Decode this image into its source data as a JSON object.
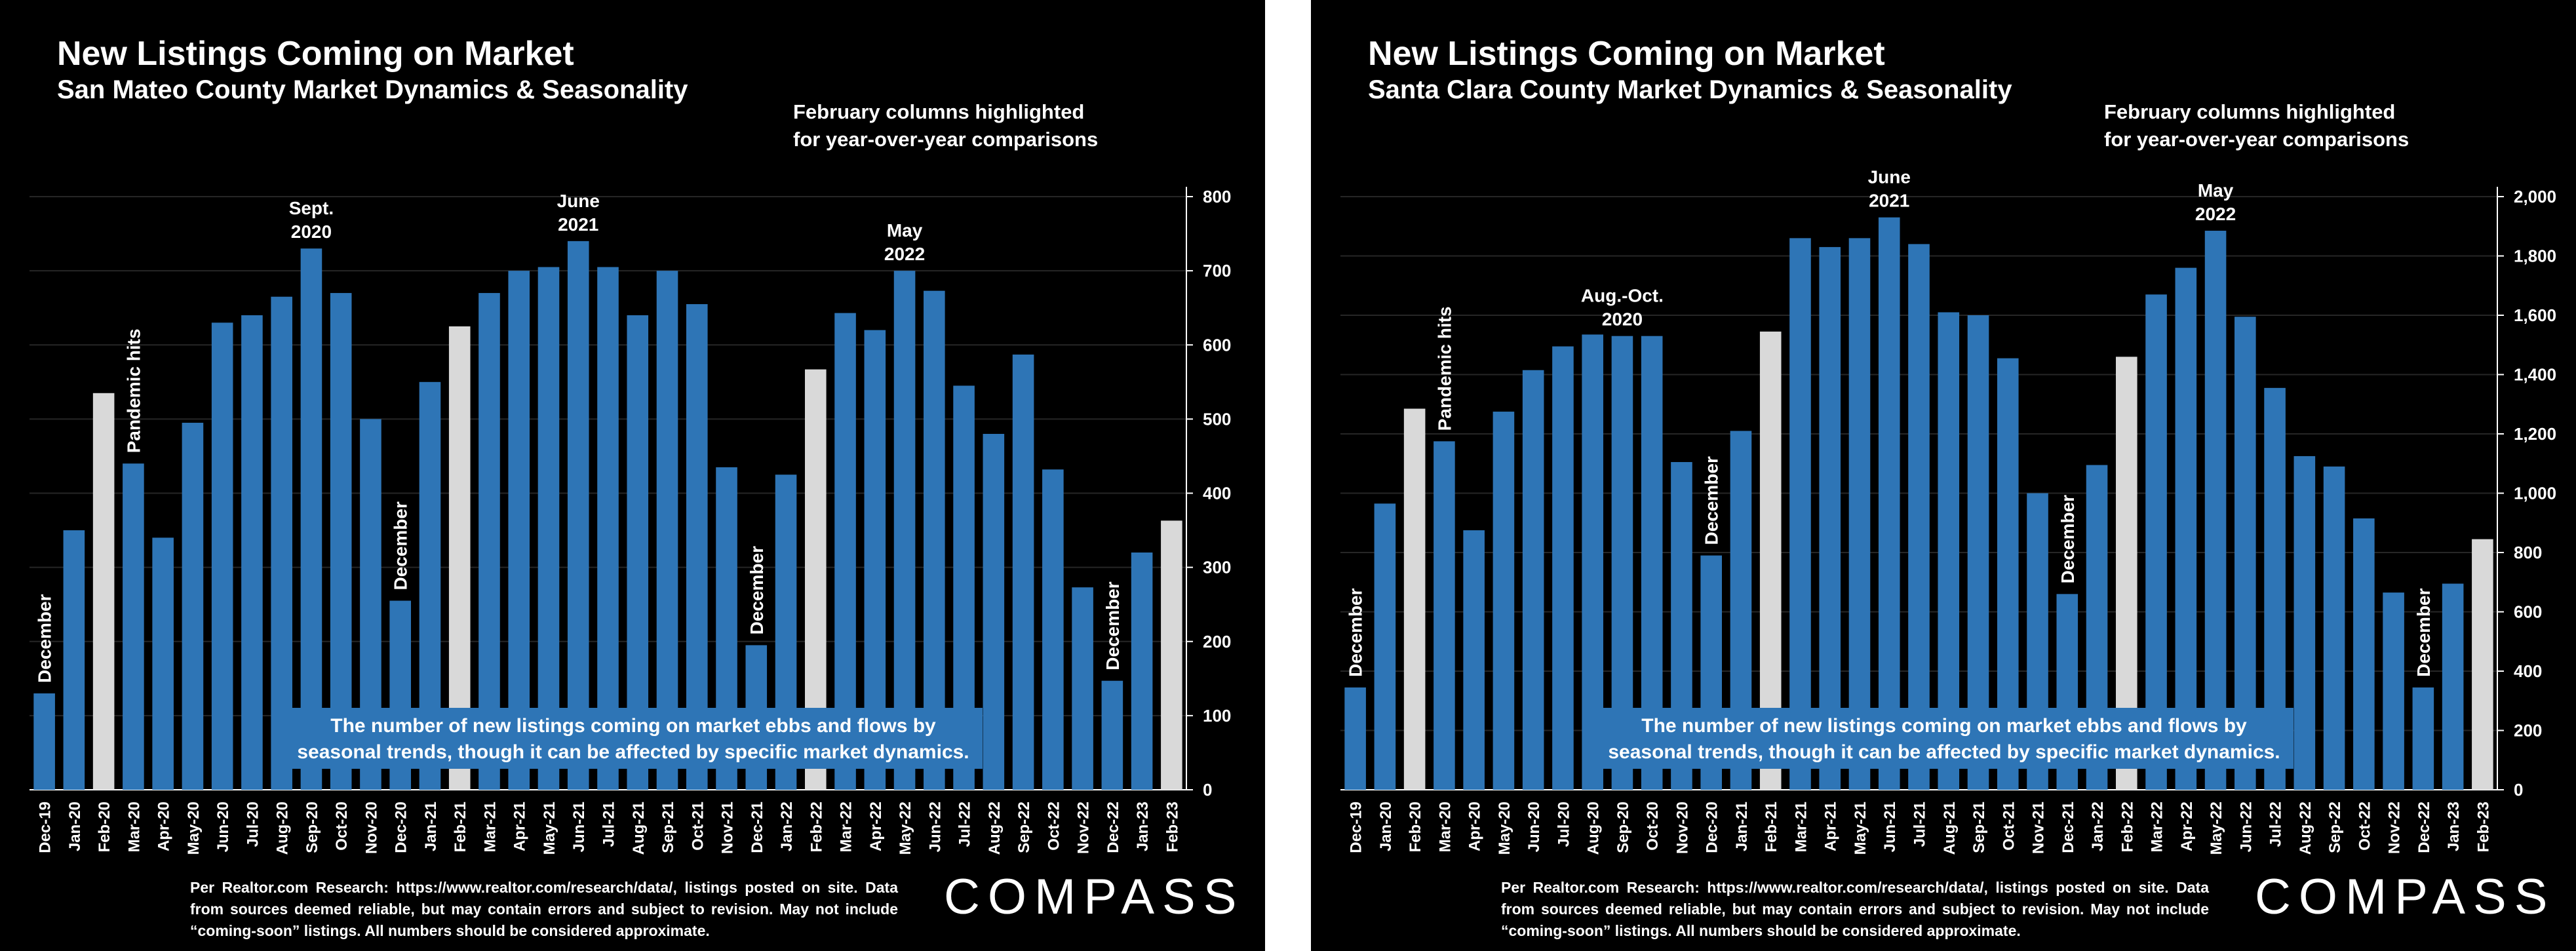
{
  "colors": {
    "background": "#000000",
    "bar": "#2e75b6",
    "highlight": "#d9d9d9",
    "text": "#ffffff",
    "callout_bg": "#2e75b6",
    "gridline": "#262626"
  },
  "panels": [
    {
      "title": "New Listings Coming on Market",
      "subtitle": "San Mateo County Market Dynamics & Seasonality",
      "note": "February columns highlighted\nfor year-over-year comparisons",
      "callout": "The number of new listings coming on market ebbs and flows by\nseasonal trends, though it can be affected by specific market dynamics.",
      "footer": "Per Realtor.com Research: https://www.realtor.com/research/data/, listings posted on site. Data from sources deemed reliable, but may contain errors and subject to revision. May not include “coming-soon” listings. All numbers should be considered approximate.",
      "logo": "COMPASS"
    },
    {
      "title": "New Listings Coming on Market",
      "subtitle": "Santa Clara County Market Dynamics & Seasonality",
      "note": "February columns highlighted\nfor year-over-year comparisons",
      "callout": "The number of new listings coming on market ebbs and flows by\nseasonal trends, though it can be affected by specific market dynamics.",
      "footer": "Per Realtor.com Research: https://www.realtor.com/research/data/, listings posted on site. Data from sources deemed reliable, but may contain errors and subject to revision. May not include “coming-soon” listings. All numbers should be considered approximate.",
      "logo": "COMPASS"
    }
  ],
  "chart_data": [
    {
      "type": "bar",
      "title": "New Listings Coming on Market",
      "subtitle": "San Mateo County Market Dynamics & Seasonality",
      "categories": [
        "Dec-19",
        "Jan-20",
        "Feb-20",
        "Mar-20",
        "Apr-20",
        "May-20",
        "Jun-20",
        "Jul-20",
        "Aug-20",
        "Sep-20",
        "Oct-20",
        "Nov-20",
        "Dec-20",
        "Jan-21",
        "Feb-21",
        "Mar-21",
        "Apr-21",
        "May-21",
        "Jun-21",
        "Jul-21",
        "Aug-21",
        "Sep-21",
        "Oct-21",
        "Nov-21",
        "Dec-21",
        "Jan-22",
        "Feb-22",
        "Mar-22",
        "Apr-22",
        "May-22",
        "Jun-22",
        "Jul-22",
        "Aug-22",
        "Sep-22",
        "Oct-22",
        "Nov-22",
        "Dec-22",
        "Jan-23",
        "Feb-23"
      ],
      "values": [
        130,
        350,
        535,
        440,
        340,
        495,
        630,
        640,
        665,
        730,
        670,
        500,
        255,
        550,
        625,
        670,
        700,
        705,
        740,
        705,
        640,
        700,
        655,
        435,
        195,
        425,
        567,
        643,
        620,
        700,
        673,
        545,
        480,
        587,
        432,
        273,
        147,
        320,
        363
      ],
      "highlight_categories": [
        "Feb-20",
        "Feb-21",
        "Feb-22",
        "Feb-23"
      ],
      "ylim": [
        0,
        800
      ],
      "yticks": [
        "0",
        "100",
        "200",
        "300",
        "400",
        "500",
        "600",
        "700",
        "800"
      ],
      "y_axis_side": "right",
      "grid": true,
      "annotations": [
        {
          "text": "December",
          "category": "Dec-19",
          "orientation": "vertical"
        },
        {
          "text": "Pandemic hits",
          "category": "Mar-20",
          "orientation": "vertical"
        },
        {
          "text": "December",
          "category": "Dec-20",
          "orientation": "vertical"
        },
        {
          "text": "December",
          "category": "Dec-21",
          "orientation": "vertical"
        },
        {
          "text": "December",
          "category": "Dec-22",
          "orientation": "vertical"
        },
        {
          "text": "Sept.\n2020",
          "category": "Sep-20",
          "orientation": "horizontal"
        },
        {
          "text": "June\n2021",
          "category": "Jun-21",
          "orientation": "horizontal"
        },
        {
          "text": "May\n2022",
          "category": "May-22",
          "orientation": "horizontal"
        }
      ]
    },
    {
      "type": "bar",
      "title": "New Listings Coming on Market",
      "subtitle": "Santa Clara County Market Dynamics & Seasonality",
      "categories": [
        "Dec-19",
        "Jan-20",
        "Feb-20",
        "Mar-20",
        "Apr-20",
        "May-20",
        "Jun-20",
        "Jul-20",
        "Aug-20",
        "Sep-20",
        "Oct-20",
        "Nov-20",
        "Dec-20",
        "Jan-21",
        "Feb-21",
        "Mar-21",
        "Apr-21",
        "May-21",
        "Jun-21",
        "Jul-21",
        "Aug-21",
        "Sep-21",
        "Oct-21",
        "Nov-21",
        "Dec-21",
        "Jan-22",
        "Feb-22",
        "Mar-22",
        "Apr-22",
        "May-22",
        "Jun-22",
        "Jul-22",
        "Aug-22",
        "Sep-22",
        "Oct-22",
        "Nov-22",
        "Dec-22",
        "Jan-23",
        "Feb-23"
      ],
      "values": [
        345,
        965,
        1285,
        1175,
        875,
        1275,
        1415,
        1495,
        1535,
        1530,
        1530,
        1105,
        790,
        1210,
        1545,
        1860,
        1830,
        1860,
        1930,
        1840,
        1610,
        1600,
        1455,
        1000,
        660,
        1095,
        1460,
        1670,
        1760,
        1885,
        1595,
        1355,
        1125,
        1090,
        915,
        665,
        345,
        695,
        845
      ],
      "highlight_categories": [
        "Feb-20",
        "Feb-21",
        "Feb-22",
        "Feb-23"
      ],
      "ylim": [
        0,
        2000
      ],
      "yticks": [
        "0",
        "200",
        "400",
        "600",
        "800",
        "1,000",
        "1,200",
        "1,400",
        "1,600",
        "1,800",
        "2,000"
      ],
      "y_axis_side": "right",
      "grid": true,
      "annotations": [
        {
          "text": "December",
          "category": "Dec-19",
          "orientation": "vertical"
        },
        {
          "text": "Pandemic hits",
          "category": "Mar-20",
          "orientation": "vertical"
        },
        {
          "text": "December",
          "category": "Dec-20",
          "orientation": "vertical"
        },
        {
          "text": "December",
          "category": "Dec-21",
          "orientation": "vertical"
        },
        {
          "text": "December",
          "category": "Dec-22",
          "orientation": "vertical"
        },
        {
          "text": "Aug.-Oct.\n2020",
          "category": "Sep-20",
          "orientation": "horizontal"
        },
        {
          "text": "June\n2021",
          "category": "Jun-21",
          "orientation": "horizontal"
        },
        {
          "text": "May\n2022",
          "category": "May-22",
          "orientation": "horizontal"
        }
      ]
    }
  ]
}
